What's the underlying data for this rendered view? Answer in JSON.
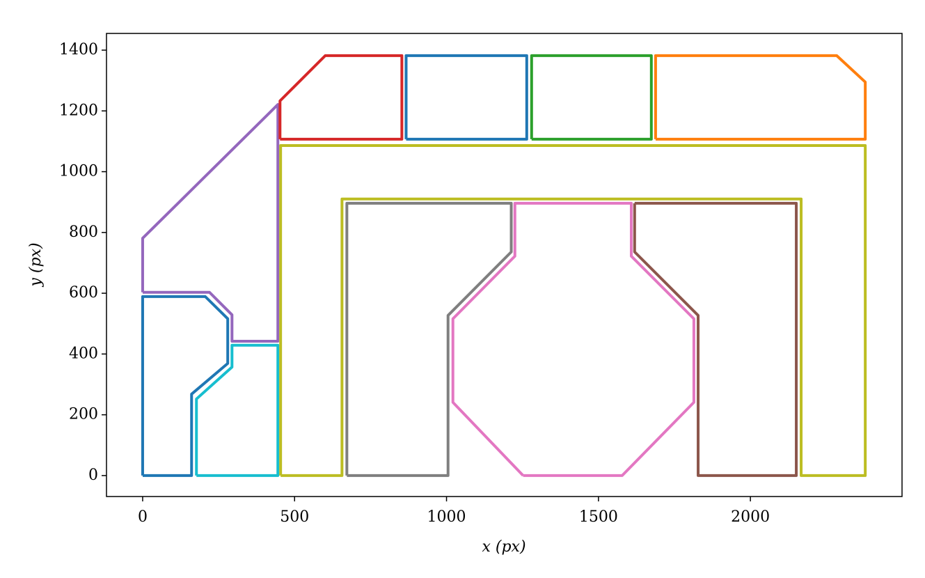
{
  "chart_data": {
    "type": "line",
    "xlabel": "x (px)",
    "ylabel": "y (px)",
    "xlim": [
      -119,
      2499
    ],
    "ylim": [
      -69,
      1455
    ],
    "xticks": [
      0,
      500,
      1000,
      1500,
      2000
    ],
    "yticks": [
      0,
      200,
      400,
      600,
      800,
      1000,
      1200,
      1400
    ],
    "grid": false,
    "series": [
      {
        "color": "#1f77b4",
        "x": [
          0,
          0,
          206,
          280,
          280,
          161,
          161,
          0
        ],
        "y": [
          0,
          589,
          589,
          516,
          369,
          268,
          0,
          0
        ]
      },
      {
        "color": "#17becf",
        "x": [
          177,
          177,
          294,
          294,
          445,
          445,
          177
        ],
        "y": [
          0,
          252,
          357,
          429,
          429,
          0,
          0
        ]
      },
      {
        "color": "#9467bd",
        "x": [
          0,
          0,
          445,
          445,
          294,
          294,
          220,
          0
        ],
        "y": [
          603,
          781,
          1221,
          442,
          442,
          529,
          603,
          603
        ]
      },
      {
        "color": "#d62728",
        "x": [
          452,
          452,
          601,
          853,
          853,
          452
        ],
        "y": [
          1107,
          1233,
          1382,
          1382,
          1107,
          1107
        ]
      },
      {
        "color": "#1f77b4",
        "x": [
          867,
          867,
          1264,
          1264,
          867
        ],
        "y": [
          1107,
          1382,
          1382,
          1107,
          1107
        ]
      },
      {
        "color": "#2ca02c",
        "x": [
          1280,
          1280,
          1674,
          1674,
          1280
        ],
        "y": [
          1107,
          1382,
          1382,
          1107,
          1107
        ]
      },
      {
        "color": "#ff7f0e",
        "x": [
          1688,
          1688,
          2284,
          2378,
          2378,
          1688
        ],
        "y": [
          1107,
          1382,
          1382,
          1295,
          1107,
          1107
        ]
      },
      {
        "color": "#bcbd22",
        "x": [
          454,
          454,
          2378,
          2378,
          2167,
          2167,
          656,
          656,
          454
        ],
        "y": [
          0,
          1086,
          1086,
          0,
          0,
          910,
          910,
          0,
          0
        ]
      },
      {
        "color": "#7f7f7f",
        "x": [
          672,
          672,
          1213,
          1213,
          1005,
          1005,
          672
        ],
        "y": [
          0,
          896,
          896,
          736,
          527,
          0,
          0
        ]
      },
      {
        "color": "#e377c2",
        "x": [
          1252,
          1021,
          1021,
          1225,
          1225,
          1608,
          1608,
          1814,
          1814,
          1578,
          1252
        ],
        "y": [
          0,
          241,
          516,
          722,
          896,
          896,
          722,
          516,
          241,
          0,
          0
        ]
      },
      {
        "color": "#8c564b",
        "x": [
          1619,
          1619,
          1828,
          1828,
          2151,
          2151,
          1619
        ],
        "y": [
          896,
          736,
          527,
          0,
          0,
          896,
          896
        ]
      }
    ]
  }
}
